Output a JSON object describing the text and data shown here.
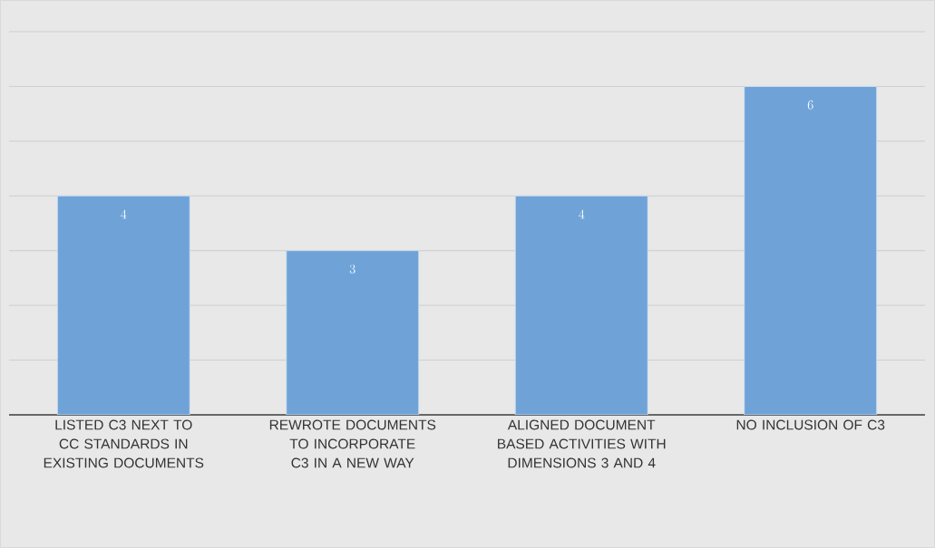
{
  "chart_data": {
    "type": "bar",
    "categories": [
      "LISTED C3 NEXT TO CC STANDARDS IN EXISTING DOCUMENTS",
      "REWROTE DOCUMENTS TO INCORPORATE C3 IN A NEW WAY",
      "ALIGNED DOCUMENT BASED ACTIVITIES WITH DIMENSIONS 3 AND 4",
      "NO INCLUSION OF C3"
    ],
    "values": [
      4,
      3,
      4,
      6
    ],
    "color": "#6fa3d8",
    "ylim": [
      0,
      7
    ],
    "yticks": [
      {
        "value": 0,
        "label": null
      },
      {
        "value": 1,
        "label": null
      },
      {
        "value": 2,
        "label": null
      },
      {
        "value": 3,
        "label": null
      },
      {
        "value": 4,
        "label": null
      },
      {
        "value": 5,
        "label": null
      },
      {
        "value": 6,
        "label": null
      },
      {
        "value": 7,
        "label": null
      }
    ],
    "grid": "y",
    "data_labels": true,
    "tick_labels": "x"
  }
}
